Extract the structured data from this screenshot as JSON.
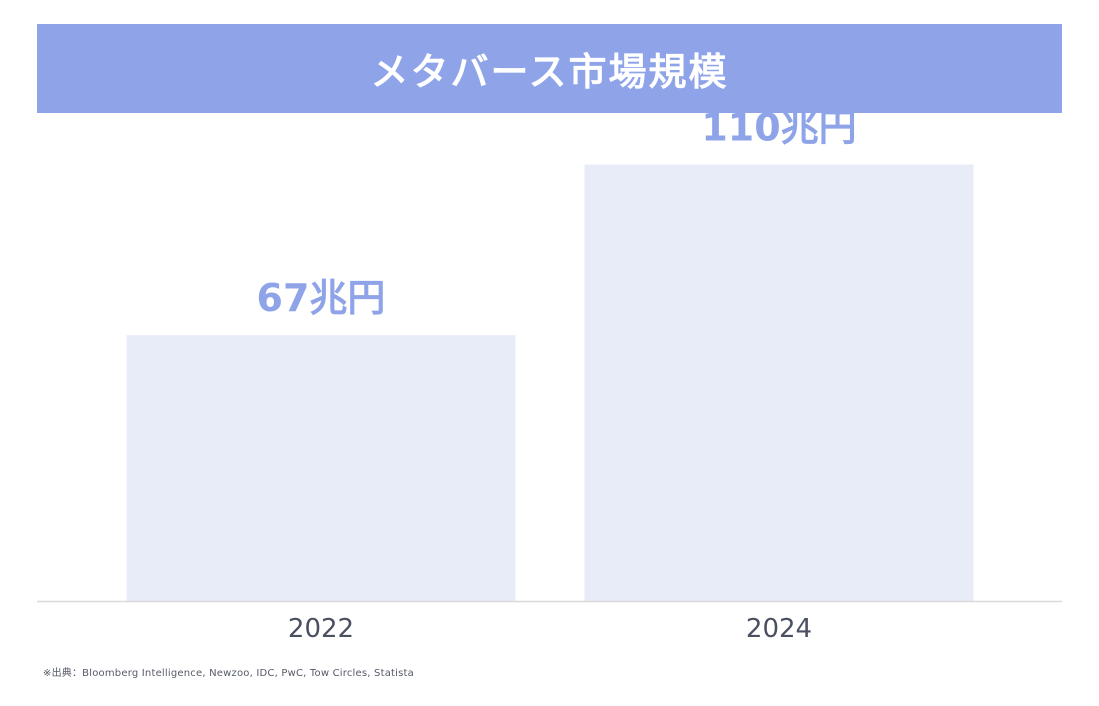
{
  "header": {
    "title": "メタバース市場規模"
  },
  "chart_data": {
    "type": "bar",
    "title": "メタバース市場規模",
    "categories": [
      "2022",
      "2024"
    ],
    "values": [
      67,
      110
    ],
    "value_labels": [
      "67兆円",
      "110兆円"
    ],
    "unit": "兆円",
    "ylim": [
      0,
      123
    ],
    "grid": false,
    "legend": "none",
    "colors": {
      "bar": "#e8ecf9",
      "value_label": "#8fa4e8",
      "axis": "#d9d9d9",
      "tick_label": "#4a5060"
    }
  },
  "footer": {
    "source": "※出典：Bloomberg Intelligence, Newzoo, IDC, PwC, Tow Circles, Statista"
  }
}
